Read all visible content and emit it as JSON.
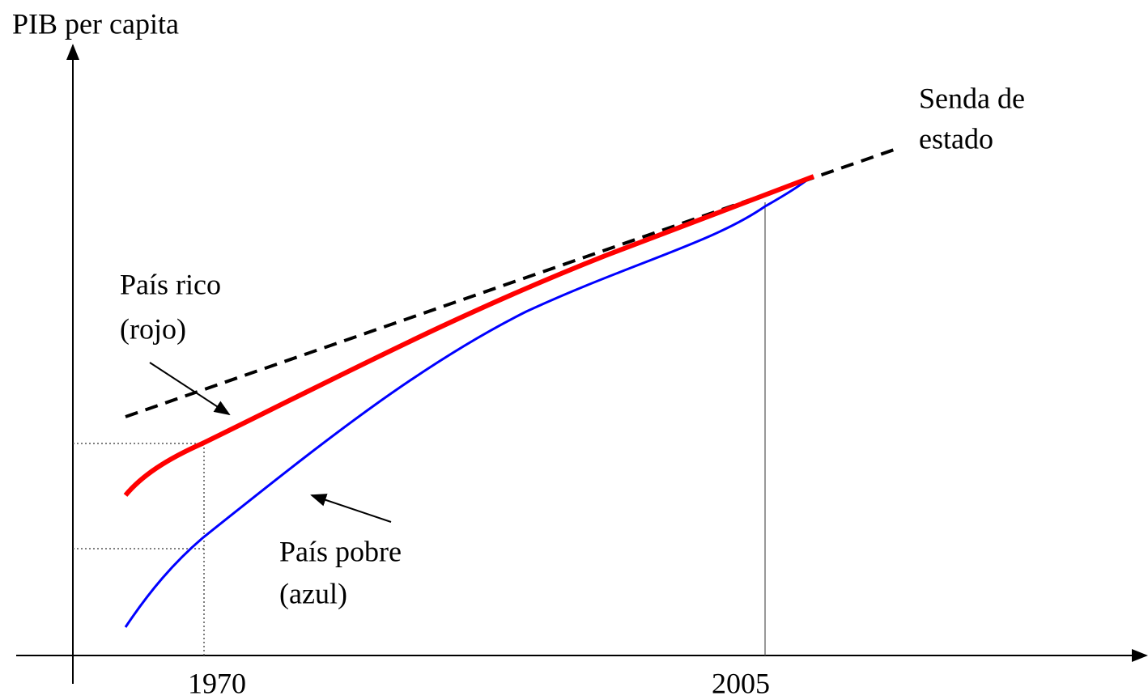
{
  "axis": {
    "y_label": "PIB per capita",
    "x_labels": [
      "1970",
      "2005"
    ]
  },
  "labels": {
    "steady_state": [
      "Senda de",
      "estado"
    ],
    "rich": [
      "País rico",
      "(rojo)"
    ],
    "poor": [
      "País pobre",
      "(azul)"
    ]
  }
}
